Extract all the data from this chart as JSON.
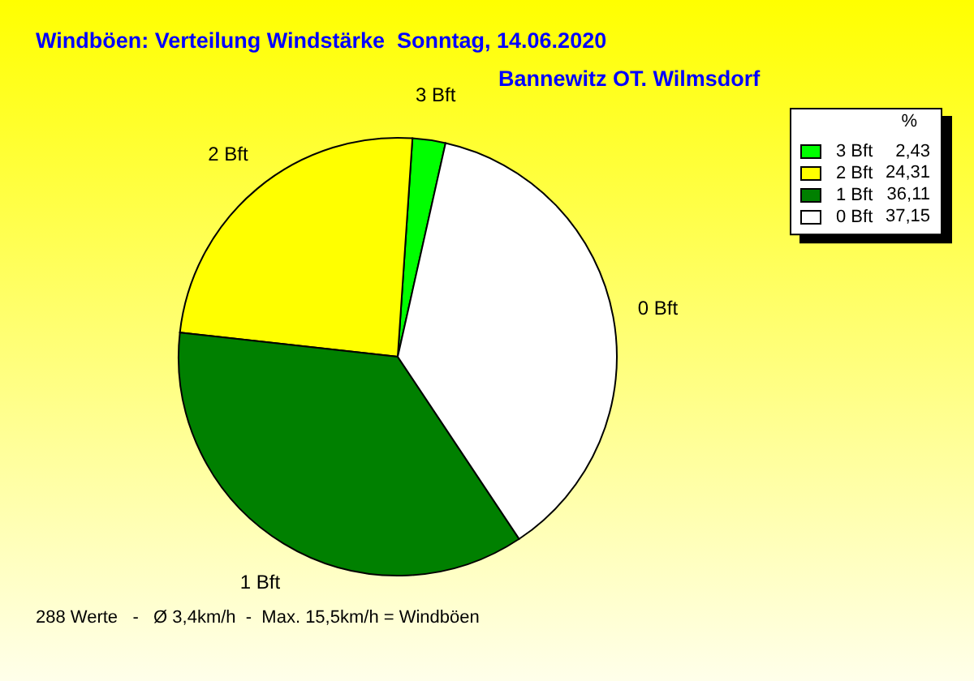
{
  "chart_data": {
    "type": "pie",
    "title": "Windböen: Verteilung Windstärke  Sonntag, 14.06.2020",
    "subtitle": "Bannewitz OT. Wilmsdorf",
    "legend_title": "%",
    "categories": [
      "3 Bft",
      "2 Bft",
      "1 Bft",
      "0 Bft"
    ],
    "values": [
      2.43,
      24.31,
      36.11,
      37.15
    ],
    "value_labels": [
      "2,43",
      "24,31",
      "36,11",
      "37,15"
    ],
    "colors": [
      "#00ff00",
      "#ffff00",
      "#008000",
      "#ffffff"
    ],
    "legend": "top right",
    "annotations": [
      "288 Werte   -   Ø 3,4km/h  -  Max. 15,5km/h = Windböen"
    ]
  }
}
